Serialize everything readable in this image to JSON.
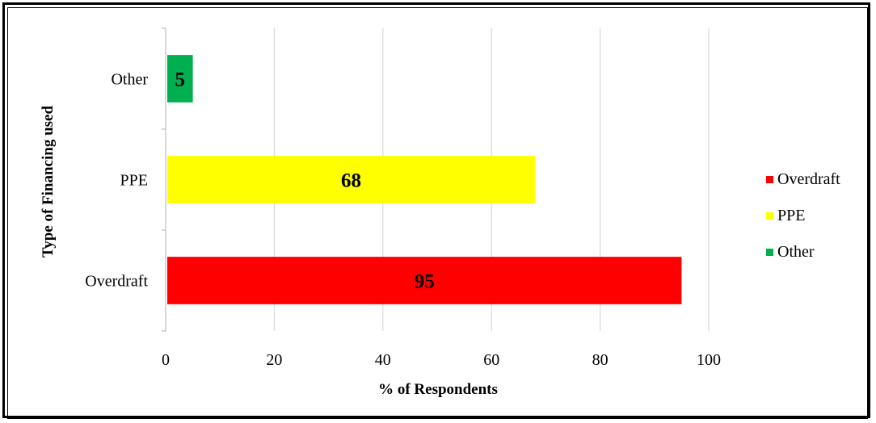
{
  "chart_data": {
    "type": "bar",
    "orientation": "horizontal",
    "categories": [
      "Overdraft",
      "PPE",
      "Other"
    ],
    "values": [
      95,
      68,
      5
    ],
    "colors": [
      "#ff0000",
      "#ffff00",
      "#00b050"
    ],
    "data_labels": [
      "95",
      "68",
      "5"
    ],
    "xlabel": "% of Respondents",
    "ylabel": "Type of Financing used",
    "xlim": [
      0,
      100
    ],
    "xticks": [
      "0",
      "20",
      "40",
      "60",
      "80",
      "100"
    ],
    "grid": "vertical",
    "legend": {
      "position": "right",
      "entries": [
        {
          "label": "Overdraft",
          "color": "#ff0000"
        },
        {
          "label": "PPE",
          "color": "#ffff00"
        },
        {
          "label": "Other",
          "color": "#00b050"
        }
      ]
    }
  }
}
